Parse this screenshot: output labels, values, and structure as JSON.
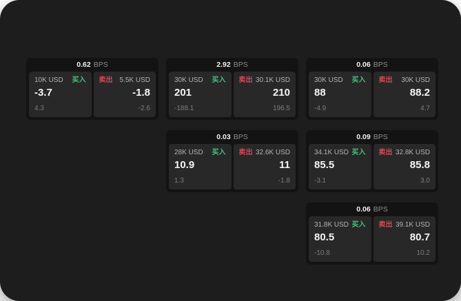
{
  "colors": {
    "screen_bg": "#1d1d1d",
    "card_bg": "#131313",
    "panel_bg": "#282828",
    "buy_green": "#45c07e",
    "sell_red": "#d14b5c"
  },
  "labels": {
    "bps": "BPS",
    "buy": "买入",
    "sell": "卖出"
  },
  "cards": [
    {
      "bps": "0.62",
      "buy": {
        "amount": "10K USD",
        "price": "-3.7",
        "delta": "4.3"
      },
      "sell": {
        "amount": "5.5K USD",
        "price": "-1.8",
        "delta": "-2.6"
      }
    },
    {
      "bps": "2.92",
      "buy": {
        "amount": "30K USD",
        "price": "201",
        "delta": "-188.1"
      },
      "sell": {
        "amount": "30.1K USD",
        "price": "210",
        "delta": "196.5"
      }
    },
    {
      "bps": "0.06",
      "buy": {
        "amount": "30K USD",
        "price": "88",
        "delta": "-4.9"
      },
      "sell": {
        "amount": "30K USD",
        "price": "88.2",
        "delta": "4.7"
      }
    },
    {
      "bps": "0.03",
      "buy": {
        "amount": "28K USD",
        "price": "10.9",
        "delta": "1.3"
      },
      "sell": {
        "amount": "32.6K USD",
        "price": "11",
        "delta": "-1.8"
      }
    },
    {
      "bps": "0.09",
      "buy": {
        "amount": "34.1K USD",
        "price": "85.5",
        "delta": "-3.1"
      },
      "sell": {
        "amount": "32.8K USD",
        "price": "85.8",
        "delta": "3.0"
      }
    },
    {
      "bps": "0.06",
      "buy": {
        "amount": "31.8K USD",
        "price": "80.5",
        "delta": "-10.8"
      },
      "sell": {
        "amount": "39.1K USD",
        "price": "80.7",
        "delta": "10.2"
      }
    }
  ]
}
